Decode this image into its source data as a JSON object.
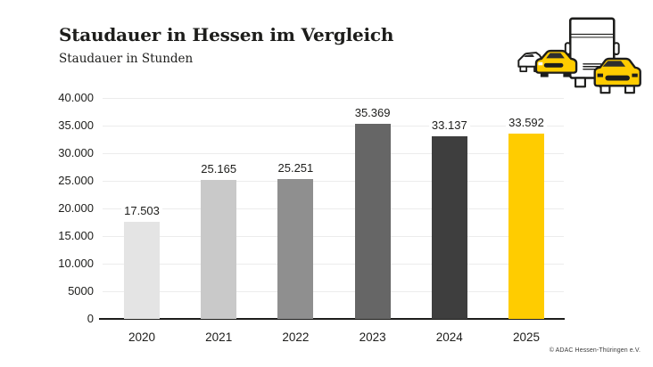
{
  "header": {
    "title": "Staudauer in Hessen im Vergleich",
    "subtitle": "Staudauer in Stunden"
  },
  "footer": {
    "copyright": "© ADAC Hessen-Thüringen e.V."
  },
  "illustration": {
    "name": "traffic-jam-truck-and-cars",
    "accent_yellow": "#FFCC00",
    "outline": "#1D1D1B"
  },
  "chart_data": {
    "type": "bar",
    "title": "Staudauer in Hessen im Vergleich",
    "subtitle": "Staudauer in Stunden",
    "unit": "Stunden",
    "categories": [
      "2020",
      "2021",
      "2022",
      "2023",
      "2024",
      "2025"
    ],
    "values": [
      17503,
      25165,
      25251,
      35369,
      33137,
      33592
    ],
    "value_labels": [
      "17.503",
      "25.165",
      "25.251",
      "35.369",
      "33.137",
      "33.592"
    ],
    "bar_colors": [
      "#E4E4E4",
      "#C9C9C9",
      "#8F8F8F",
      "#666666",
      "#3E3E3E",
      "#FFCC00"
    ],
    "ylim": [
      0,
      40000
    ],
    "y_ticks": [
      {
        "value": 40000,
        "label": "40.000"
      },
      {
        "value": 35000,
        "label": "35.000"
      },
      {
        "value": 30000,
        "label": "30.000"
      },
      {
        "value": 25000,
        "label": "25.000"
      },
      {
        "value": 20000,
        "label": "20.000"
      },
      {
        "value": 15000,
        "label": "15.000"
      },
      {
        "value": 10000,
        "label": "10.000"
      },
      {
        "value": 5000,
        "label": "5000"
      },
      {
        "value": 0,
        "label": "0"
      }
    ],
    "grid": "horizontal",
    "legend": "none",
    "colors": {
      "axis": "#1D1D1B",
      "grid": "#ECECEC",
      "text": "#1D1D1B"
    }
  }
}
